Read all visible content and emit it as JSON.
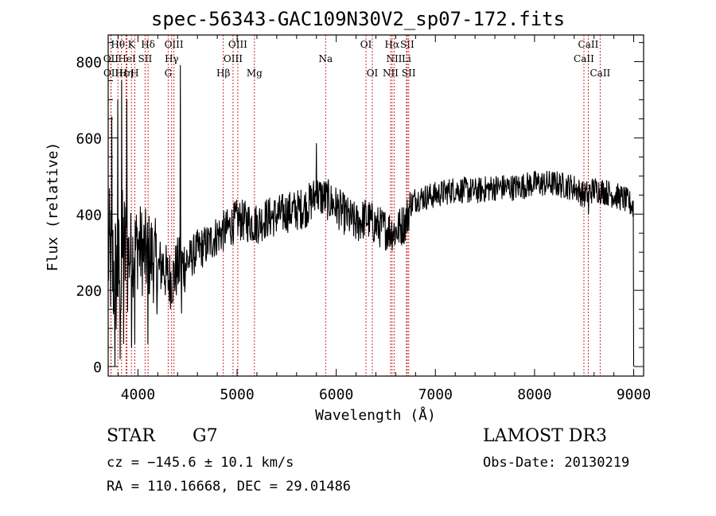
{
  "title": "spec-56343-GAC109N30V2_sp07-172.fits",
  "info": {
    "object_class": "STAR",
    "subclass": "G7",
    "survey": "LAMOST DR3",
    "cz": "cz = −145.6 ± 10.1 km/s",
    "obs_date": "Obs-Date: 20130219",
    "coords": "RA = 110.16668, DEC =  29.01486"
  },
  "chart_data": {
    "type": "line",
    "title": "spec-56343-GAC109N30V2_sp07-172.fits",
    "xlabel": "Wavelength (Å)",
    "ylabel": "Flux (relative)",
    "xlim": [
      3700,
      9100
    ],
    "ylim": [
      -25,
      870
    ],
    "x_ticks": [
      4000,
      5000,
      6000,
      7000,
      8000,
      9000
    ],
    "x_tick_labels": [
      "4000",
      "5000",
      "6000",
      "7000",
      "8000",
      "9000"
    ],
    "y_ticks": [
      0,
      200,
      400,
      600,
      800
    ],
    "y_tick_labels": [
      "0",
      "200",
      "400",
      "600",
      "800"
    ],
    "line_color": "#000000",
    "marker_color": "#cc2a2a",
    "spectrum_anchors": [
      [
        3700,
        300
      ],
      [
        3750,
        250
      ],
      [
        3800,
        230
      ],
      [
        3850,
        300
      ],
      [
        3900,
        290
      ],
      [
        3950,
        300
      ],
      [
        4000,
        320
      ],
      [
        4050,
        300
      ],
      [
        4100,
        290
      ],
      [
        4150,
        290
      ],
      [
        4200,
        250
      ],
      [
        4250,
        270
      ],
      [
        4300,
        230
      ],
      [
        4350,
        230
      ],
      [
        4400,
        260
      ],
      [
        4500,
        275
      ],
      [
        4600,
        305
      ],
      [
        4700,
        320
      ],
      [
        4800,
        345
      ],
      [
        4900,
        360
      ],
      [
        5000,
        385
      ],
      [
        5100,
        380
      ],
      [
        5200,
        375
      ],
      [
        5300,
        390
      ],
      [
        5400,
        395
      ],
      [
        5500,
        405
      ],
      [
        5600,
        410
      ],
      [
        5700,
        420
      ],
      [
        5800,
        450
      ],
      [
        5900,
        440
      ],
      [
        6000,
        420
      ],
      [
        6100,
        395
      ],
      [
        6200,
        375
      ],
      [
        6300,
        390
      ],
      [
        6400,
        370
      ],
      [
        6500,
        360
      ],
      [
        6600,
        355
      ],
      [
        6700,
        380
      ],
      [
        6750,
        425
      ],
      [
        6800,
        440
      ],
      [
        7000,
        450
      ],
      [
        7200,
        465
      ],
      [
        7400,
        460
      ],
      [
        7600,
        470
      ],
      [
        7800,
        470
      ],
      [
        8000,
        480
      ],
      [
        8200,
        480
      ],
      [
        8400,
        470
      ],
      [
        8500,
        450
      ],
      [
        8600,
        465
      ],
      [
        8700,
        460
      ],
      [
        8800,
        450
      ],
      [
        8900,
        440
      ],
      [
        9000,
        420
      ]
    ],
    "spectrum_features": [
      {
        "x": 3736,
        "y": 655
      },
      {
        "x": 3770,
        "y": 0
      },
      {
        "x": 3798,
        "y": 700
      },
      {
        "x": 3820,
        "y": 20
      },
      {
        "x": 3835,
        "y": 750
      },
      {
        "x": 3856,
        "y": 60
      },
      {
        "x": 3889,
        "y": 700
      },
      {
        "x": 3935,
        "y": 50
      },
      {
        "x": 3970,
        "y": 60
      },
      {
        "x": 4102,
        "y": 60
      },
      {
        "x": 4430,
        "y": 790
      },
      {
        "x": 4440,
        "y": 140
      },
      {
        "x": 5800,
        "y": 585
      },
      {
        "x": 8545,
        "y": 400
      },
      {
        "x": 9000,
        "y": 0
      }
    ],
    "lines": [
      {
        "label": "Hθ",
        "x": 3798,
        "row": 0
      },
      {
        "label": "K",
        "x": 3934,
        "row": 0
      },
      {
        "label": "Hδ",
        "x": 4102,
        "row": 0
      },
      {
        "label": "OIII",
        "x": 4363,
        "row": 0
      },
      {
        "label": "OIII",
        "x": 5007,
        "row": 0
      },
      {
        "label": "OI",
        "x": 6300,
        "row": 0
      },
      {
        "label": "Hα",
        "x": 6563,
        "row": 0
      },
      {
        "label": "SII",
        "x": 6716,
        "row": 0
      },
      {
        "label": "CaII",
        "x": 8542,
        "row": 0
      },
      {
        "label": "OII",
        "x": 3727,
        "row": 1
      },
      {
        "label": "HeI",
        "x": 3889,
        "row": 1
      },
      {
        "label": "SII",
        "x": 4072,
        "row": 1
      },
      {
        "label": "Hγ",
        "x": 4340,
        "row": 1
      },
      {
        "label": "OIII",
        "x": 4959,
        "row": 1
      },
      {
        "label": "Na",
        "x": 5893,
        "row": 1
      },
      {
        "label": "NII",
        "x": 6584,
        "row": 1
      },
      {
        "label": "Li",
        "x": 6708,
        "row": 1
      },
      {
        "label": "CaII",
        "x": 8498,
        "row": 1
      },
      {
        "label": "OII",
        "x": 3729,
        "row": 2
      },
      {
        "label": "Hε",
        "x": 3835,
        "row": 2
      },
      {
        "label": "Hη",
        "x": 3880,
        "row": 2
      },
      {
        "label": "H",
        "x": 3968,
        "row": 2
      },
      {
        "label": "G",
        "x": 4305,
        "row": 2
      },
      {
        "label": "Hβ",
        "x": 4861,
        "row": 2
      },
      {
        "label": "Mg",
        "x": 5175,
        "row": 2
      },
      {
        "label": "OI",
        "x": 6364,
        "row": 2
      },
      {
        "label": "NII",
        "x": 6548,
        "row": 2
      },
      {
        "label": "SII",
        "x": 6731,
        "row": 2
      },
      {
        "label": "CaII",
        "x": 8662,
        "row": 2
      }
    ]
  }
}
